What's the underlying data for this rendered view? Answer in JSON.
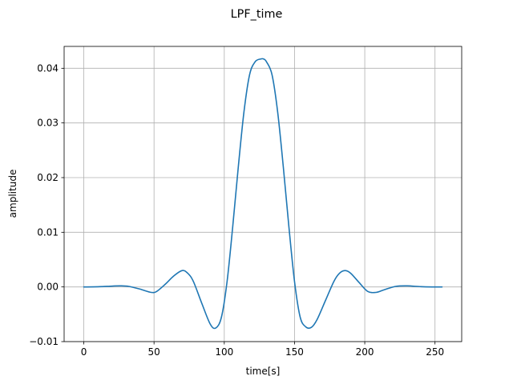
{
  "chart_data": {
    "type": "line",
    "title": "LPF_time",
    "xlabel": "time[s]",
    "ylabel": "amplitude",
    "xlim": [
      -14,
      269
    ],
    "ylim": [
      -0.01,
      0.044
    ],
    "xticks": [
      0,
      50,
      100,
      150,
      200,
      250
    ],
    "xtick_labels": [
      "0",
      "50",
      "100",
      "150",
      "200",
      "250"
    ],
    "yticks": [
      -0.01,
      0.0,
      0.01,
      0.02,
      0.03,
      0.04
    ],
    "ytick_labels": [
      "−0.01",
      "0.00",
      "0.01",
      "0.02",
      "0.03",
      "0.04"
    ],
    "grid": true,
    "series": [
      {
        "color": "#1f77b4",
        "x": [
          0,
          10,
          20,
          26,
          32,
          40,
          48,
          52,
          58,
          64,
          70,
          74,
          78,
          84,
          90,
          94,
          98,
          102,
          106,
          110,
          114,
          118,
          122,
          126,
          128,
          130,
          134,
          138,
          142,
          146,
          150,
          154,
          158,
          162,
          166,
          172,
          178,
          182,
          186,
          190,
          196,
          202,
          208,
          214,
          222,
          230,
          240,
          248,
          255
        ],
        "y": [
          0.0,
          3e-05,
          0.00015,
          0.0002,
          0.0001,
          -0.0004,
          -0.001,
          -0.0008,
          0.0005,
          0.002,
          0.003,
          0.0025,
          0.001,
          -0.003,
          -0.0068,
          -0.0075,
          -0.0055,
          0.001,
          0.011,
          0.022,
          0.032,
          0.0388,
          0.0412,
          0.0417,
          0.0417,
          0.0412,
          0.0388,
          0.032,
          0.022,
          0.011,
          0.001,
          -0.0055,
          -0.0073,
          -0.0074,
          -0.006,
          -0.0025,
          0.001,
          0.0025,
          0.003,
          0.0025,
          0.0008,
          -0.0008,
          -0.001,
          -0.0005,
          0.0001,
          0.0002,
          5e-05,
          0.0,
          0.0
        ]
      }
    ]
  }
}
